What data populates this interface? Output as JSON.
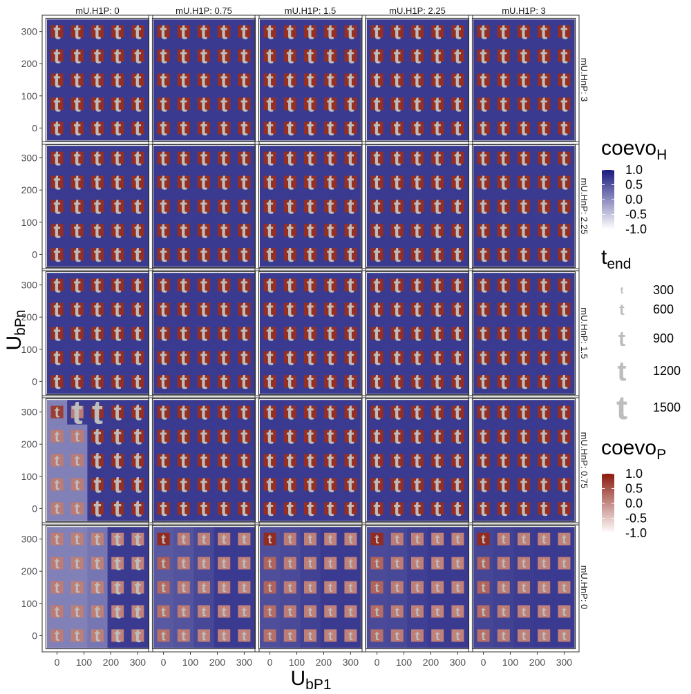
{
  "chart_data": {
    "type": "heatmap",
    "facet_cols_title": "mU.H1P",
    "facet_rows_title": "mU.HnP",
    "col_strips": [
      "mU.H1P: 0",
      "mU.H1P: 0.75",
      "mU.H1P: 1.5",
      "mU.H1P: 2.25",
      "mU.H1P: 3"
    ],
    "row_strips": [
      "mU.HnP: 3",
      "mU.HnP: 2.25",
      "mU.HnP: 1.5",
      "mU.HnP: 0.75",
      "mU.HnP: 0"
    ],
    "x_axis": {
      "label_main": "U",
      "label_sub": "bP1",
      "ticks": [
        0,
        100,
        200,
        300
      ],
      "tick_labels": [
        "0",
        "100",
        "200",
        "300"
      ],
      "lim": [
        -40,
        340
      ]
    },
    "y_axis": {
      "label_main": "U",
      "label_sub": "bPn",
      "ticks": [
        0,
        100,
        200,
        300
      ],
      "tick_labels": [
        "0",
        "100",
        "200",
        "300"
      ],
      "lim": [
        -40,
        340
      ]
    },
    "grid_values": [
      0,
      75,
      150,
      225,
      300
    ],
    "glyph": "t",
    "legend_H": {
      "title_main": "coevo",
      "title_sub": "H",
      "labels": [
        "1.0",
        "0.5",
        "0.0",
        "-0.5",
        "-1.0"
      ],
      "range": [
        -1,
        1
      ],
      "color_high": "#1a1a7e",
      "color_low": "#ffffff"
    },
    "legend_t": {
      "title_main": "t",
      "title_sub": "end",
      "labels": [
        "300",
        "600",
        "900",
        "1200",
        "1500"
      ],
      "glyph_color": "#bdbdbd"
    },
    "legend_P": {
      "title_main": "coevo",
      "title_sub": "P",
      "labels": [
        "1.0",
        "0.5",
        "0.0",
        "-0.5",
        "-1.0"
      ],
      "range": [
        -1,
        1
      ],
      "color_high": "#8b1a0e",
      "color_low": "#ffffff"
    },
    "panels_default": {
      "coevo_H": 0.72,
      "coevo_P": 0.82,
      "t_end": 900
    },
    "panels_special": [
      {
        "row": 3,
        "col": 0,
        "coevo_H": [
          [
            0.1,
            0.1,
            0.72,
            0.72,
            0.72
          ],
          [
            0.1,
            0.1,
            0.72,
            0.72,
            0.72
          ],
          [
            0.1,
            0.1,
            0.72,
            0.72,
            0.72
          ],
          [
            0.1,
            0.1,
            0.72,
            0.72,
            0.72
          ],
          [
            0.1,
            0.72,
            0.72,
            0.72,
            0.72
          ]
        ],
        "coevo_P": [
          [
            0.15,
            0.15,
            0.82,
            0.82,
            0.82
          ],
          [
            0.15,
            0.15,
            0.82,
            0.82,
            0.82
          ],
          [
            0.15,
            0.15,
            0.82,
            0.82,
            0.82
          ],
          [
            0.15,
            0.15,
            0.82,
            0.82,
            0.82
          ],
          [
            0.7,
            0.15,
            0.82,
            0.82,
            0.82
          ]
        ],
        "t_end": [
          [
            600,
            600,
            1000,
            1000,
            1000
          ],
          [
            600,
            600,
            1000,
            1000,
            1000
          ],
          [
            600,
            600,
            1000,
            1000,
            1000
          ],
          [
            600,
            600,
            1000,
            1000,
            1000
          ],
          [
            600,
            1500,
            1500,
            1000,
            1000
          ]
        ]
      },
      {
        "row": 4,
        "col": 0,
        "coevo_H": [
          [
            0.1,
            0.1,
            0.2,
            0.72,
            0.72
          ],
          [
            0.1,
            0.1,
            0.2,
            0.72,
            0.72
          ],
          [
            0.1,
            0.1,
            0.2,
            0.72,
            0.72
          ],
          [
            0.1,
            0.1,
            0.2,
            0.72,
            0.72
          ],
          [
            0.1,
            0.1,
            0.2,
            0.72,
            0.72
          ]
        ],
        "coevo_P": [
          [
            0.15,
            0.12,
            0.12,
            0.1,
            0.1
          ],
          [
            0.15,
            0.12,
            0.12,
            0.1,
            0.1
          ],
          [
            0.15,
            0.12,
            0.12,
            0.1,
            0.1
          ],
          [
            0.15,
            0.12,
            0.12,
            0.1,
            0.1
          ],
          [
            0.15,
            0.12,
            0.12,
            0.1,
            0.1
          ]
        ],
        "t_end": [
          [
            600,
            600,
            700,
            800,
            800
          ],
          [
            600,
            600,
            700,
            800,
            800
          ],
          [
            600,
            600,
            700,
            800,
            800
          ],
          [
            600,
            600,
            700,
            800,
            800
          ],
          [
            600,
            600,
            700,
            800,
            800
          ]
        ]
      },
      {
        "row": 4,
        "col": 1,
        "coevo_H": [
          [
            0.45,
            0.5,
            0.6,
            0.72,
            0.72
          ],
          [
            0.45,
            0.5,
            0.6,
            0.72,
            0.72
          ],
          [
            0.45,
            0.5,
            0.6,
            0.72,
            0.72
          ],
          [
            0.45,
            0.5,
            0.6,
            0.72,
            0.72
          ],
          [
            0.45,
            0.5,
            0.6,
            0.72,
            0.72
          ]
        ],
        "coevo_P": [
          [
            0.25,
            0.15,
            0.12,
            0.1,
            0.1
          ],
          [
            0.25,
            0.15,
            0.12,
            0.1,
            0.1
          ],
          [
            0.3,
            0.15,
            0.12,
            0.1,
            0.1
          ],
          [
            0.4,
            0.15,
            0.12,
            0.1,
            0.1
          ],
          [
            0.85,
            0.15,
            0.12,
            0.1,
            0.1
          ]
        ],
        "t_end": [
          [
            500,
            500,
            500,
            500,
            500
          ],
          [
            500,
            500,
            500,
            500,
            500
          ],
          [
            500,
            500,
            500,
            500,
            500
          ],
          [
            500,
            500,
            500,
            500,
            500
          ],
          [
            500,
            500,
            500,
            500,
            500
          ]
        ]
      },
      {
        "row": 4,
        "col": 2,
        "coevo_H": [
          [
            0.55,
            0.58,
            0.65,
            0.72,
            0.72
          ],
          [
            0.55,
            0.58,
            0.65,
            0.72,
            0.72
          ],
          [
            0.55,
            0.58,
            0.65,
            0.72,
            0.72
          ],
          [
            0.55,
            0.58,
            0.65,
            0.72,
            0.72
          ],
          [
            0.55,
            0.58,
            0.65,
            0.72,
            0.72
          ]
        ],
        "coevo_P": [
          [
            0.25,
            0.15,
            0.12,
            0.1,
            0.1
          ],
          [
            0.28,
            0.15,
            0.12,
            0.1,
            0.1
          ],
          [
            0.35,
            0.15,
            0.12,
            0.1,
            0.1
          ],
          [
            0.35,
            0.15,
            0.12,
            0.1,
            0.1
          ],
          [
            0.85,
            0.15,
            0.12,
            0.1,
            0.1
          ]
        ],
        "t_end": [
          [
            450,
            450,
            450,
            450,
            450
          ],
          [
            450,
            450,
            450,
            450,
            450
          ],
          [
            450,
            450,
            450,
            450,
            450
          ],
          [
            450,
            450,
            450,
            450,
            450
          ],
          [
            450,
            450,
            450,
            450,
            450
          ]
        ]
      },
      {
        "row": 4,
        "col": 3,
        "coevo_H": [
          [
            0.58,
            0.6,
            0.68,
            0.72,
            0.72
          ],
          [
            0.58,
            0.6,
            0.68,
            0.72,
            0.72
          ],
          [
            0.58,
            0.6,
            0.68,
            0.72,
            0.72
          ],
          [
            0.58,
            0.6,
            0.68,
            0.72,
            0.72
          ],
          [
            0.58,
            0.6,
            0.68,
            0.72,
            0.72
          ]
        ],
        "coevo_P": [
          [
            0.25,
            0.15,
            0.12,
            0.1,
            0.1
          ],
          [
            0.28,
            0.15,
            0.12,
            0.1,
            0.1
          ],
          [
            0.35,
            0.15,
            0.12,
            0.1,
            0.1
          ],
          [
            0.35,
            0.15,
            0.12,
            0.1,
            0.1
          ],
          [
            0.85,
            0.15,
            0.12,
            0.1,
            0.1
          ]
        ],
        "t_end": [
          [
            450,
            450,
            450,
            450,
            450
          ],
          [
            450,
            450,
            450,
            450,
            450
          ],
          [
            450,
            450,
            450,
            450,
            450
          ],
          [
            450,
            450,
            450,
            450,
            450
          ],
          [
            450,
            450,
            450,
            450,
            450
          ]
        ]
      },
      {
        "row": 4,
        "col": 4,
        "coevo_H": [
          [
            0.62,
            0.65,
            0.7,
            0.72,
            0.72
          ],
          [
            0.62,
            0.65,
            0.7,
            0.72,
            0.72
          ],
          [
            0.62,
            0.65,
            0.7,
            0.72,
            0.72
          ],
          [
            0.62,
            0.65,
            0.7,
            0.72,
            0.72
          ],
          [
            0.62,
            0.65,
            0.7,
            0.72,
            0.72
          ]
        ],
        "coevo_P": [
          [
            0.25,
            0.15,
            0.12,
            0.1,
            0.1
          ],
          [
            0.28,
            0.15,
            0.12,
            0.1,
            0.1
          ],
          [
            0.35,
            0.15,
            0.12,
            0.1,
            0.1
          ],
          [
            0.35,
            0.15,
            0.12,
            0.1,
            0.1
          ],
          [
            0.85,
            0.15,
            0.12,
            0.1,
            0.1
          ]
        ],
        "t_end": [
          [
            450,
            450,
            450,
            450,
            450
          ],
          [
            450,
            450,
            450,
            450,
            450
          ],
          [
            450,
            450,
            450,
            450,
            450
          ],
          [
            450,
            450,
            450,
            450,
            450
          ],
          [
            450,
            450,
            450,
            450,
            450
          ]
        ]
      }
    ]
  }
}
